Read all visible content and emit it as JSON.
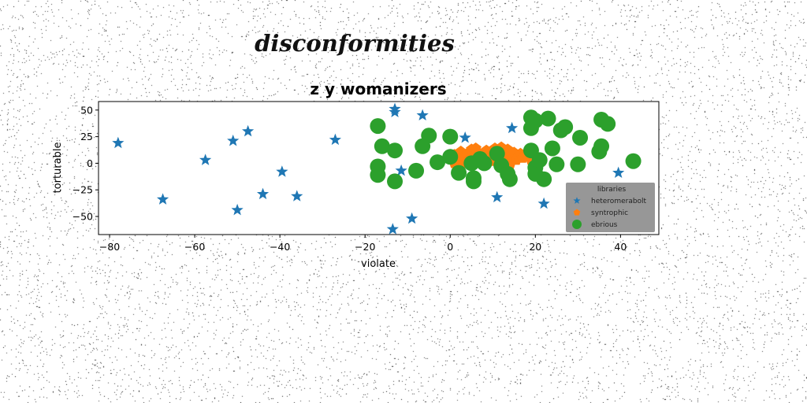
{
  "figure": {
    "suptitle": "disconformities"
  },
  "chart_data": {
    "type": "scatter",
    "title": "z y womanizers",
    "xlabel": "violate",
    "ylabel": "torturable",
    "xlim": [
      -82.6,
      49.0
    ],
    "ylim": [
      -67.0,
      58.0
    ],
    "xticks": [
      -80,
      -60,
      -40,
      -20,
      0,
      20,
      40
    ],
    "yticks": [
      -50,
      -25,
      0,
      25,
      50
    ],
    "grid": false,
    "legend": {
      "title": "libraries",
      "placement": "lower-right"
    },
    "series": [
      {
        "name": "heteromerabolt",
        "color": "#1f77b4",
        "marker": "star",
        "points": [
          [
            -78,
            19
          ],
          [
            -67.5,
            -34
          ],
          [
            -57.5,
            3
          ],
          [
            -51,
            21
          ],
          [
            -50,
            -44
          ],
          [
            -47.5,
            30
          ],
          [
            -44,
            -29
          ],
          [
            -39.5,
            -8
          ],
          [
            -36,
            -31
          ],
          [
            -27,
            22
          ],
          [
            -13.5,
            -62
          ],
          [
            -13,
            51
          ],
          [
            -13,
            48
          ],
          [
            -11.5,
            -7
          ],
          [
            -9,
            -52
          ],
          [
            -6.5,
            45
          ],
          [
            3.5,
            24
          ],
          [
            11,
            -32
          ],
          [
            14.5,
            33
          ],
          [
            22,
            -38
          ],
          [
            39.5,
            -9
          ]
        ]
      },
      {
        "name": "syntrophic",
        "color": "#ff7f0e",
        "marker": "pentagon",
        "points": [
          [
            0,
            5
          ],
          [
            1,
            8
          ],
          [
            2,
            2
          ],
          [
            2.5,
            11
          ],
          [
            3,
            6
          ],
          [
            3.5,
            0
          ],
          [
            4,
            9
          ],
          [
            4.5,
            3
          ],
          [
            5,
            13
          ],
          [
            5.5,
            6
          ],
          [
            6,
            1
          ],
          [
            6.5,
            10
          ],
          [
            7,
            4
          ],
          [
            7.5,
            8
          ],
          [
            8,
            -1
          ],
          [
            8.5,
            12
          ],
          [
            9,
            5
          ],
          [
            9.5,
            2
          ],
          [
            10,
            9
          ],
          [
            10.5,
            14
          ],
          [
            11,
            6
          ],
          [
            11.5,
            0
          ],
          [
            12,
            11
          ],
          [
            12.5,
            4
          ],
          [
            13,
            8
          ],
          [
            13.5,
            13
          ],
          [
            14,
            2
          ],
          [
            14.5,
            7
          ],
          [
            15,
            10
          ],
          [
            15.5,
            3
          ],
          [
            16,
            6
          ],
          [
            16.5,
            9
          ],
          [
            17,
            5
          ],
          [
            18,
            8
          ],
          [
            19,
            3
          ],
          [
            1,
            0
          ],
          [
            6,
            14
          ],
          [
            12,
            15
          ],
          [
            8,
            7
          ],
          [
            14,
            -2
          ]
        ]
      },
      {
        "name": "ebrious",
        "color": "#2ca02c",
        "marker": "circle",
        "points": [
          [
            -17,
            35
          ],
          [
            -16,
            16
          ],
          [
            -17,
            -3
          ],
          [
            -17,
            -11
          ],
          [
            -13,
            12
          ],
          [
            -13,
            -17
          ],
          [
            -8,
            -7
          ],
          [
            -6.5,
            16
          ],
          [
            -5,
            26
          ],
          [
            -3,
            1
          ],
          [
            0,
            25
          ],
          [
            0,
            6
          ],
          [
            2,
            -9
          ],
          [
            5,
            0
          ],
          [
            5.5,
            -14
          ],
          [
            5.5,
            -17
          ],
          [
            7,
            4
          ],
          [
            8,
            0
          ],
          [
            11,
            9
          ],
          [
            12,
            -2
          ],
          [
            13.5,
            -10
          ],
          [
            14,
            -15
          ],
          [
            19,
            43
          ],
          [
            19,
            33
          ],
          [
            20,
            40
          ],
          [
            19,
            12
          ],
          [
            20,
            -4
          ],
          [
            20,
            -10
          ],
          [
            21,
            3
          ],
          [
            22,
            -15
          ],
          [
            23,
            42
          ],
          [
            24,
            14
          ],
          [
            25,
            -1
          ],
          [
            26,
            31
          ],
          [
            27,
            34
          ],
          [
            30,
            -1
          ],
          [
            30.5,
            24
          ],
          [
            35,
            11
          ],
          [
            35.5,
            16
          ],
          [
            35.5,
            41
          ],
          [
            37,
            37
          ],
          [
            43,
            2
          ]
        ]
      }
    ]
  }
}
